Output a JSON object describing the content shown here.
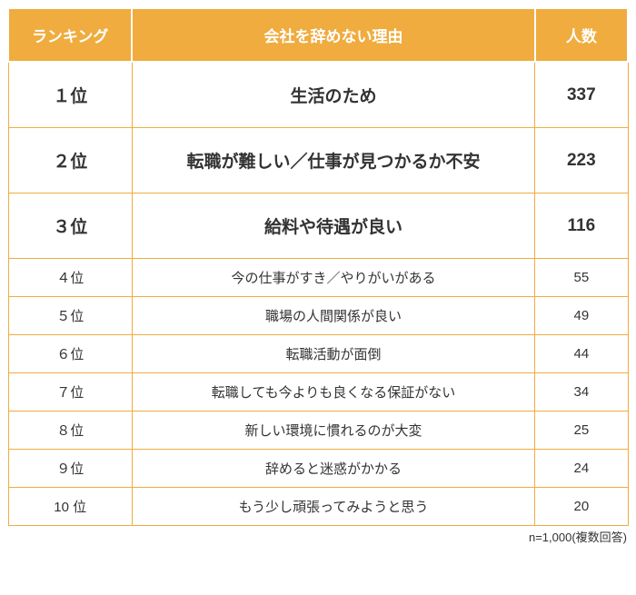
{
  "table": {
    "header_bg": "#f0ac3f",
    "header_color": "#ffffff",
    "border_color": "#f0ac3f",
    "text_color": "#333333",
    "columns": [
      "ランキング",
      "会社を辞めない理由",
      "人数"
    ],
    "rows": [
      {
        "rank": "１位",
        "reason": "生活のため",
        "count": "337",
        "top3": true
      },
      {
        "rank": "２位",
        "reason": "転職が難しい／仕事が見つかるか不安",
        "count": "223",
        "top3": true
      },
      {
        "rank": "３位",
        "reason": "給料や待遇が良い",
        "count": "116",
        "top3": true
      },
      {
        "rank": "４位",
        "reason": "今の仕事がすき／やりがいがある",
        "count": "55",
        "top3": false
      },
      {
        "rank": "５位",
        "reason": "職場の人間関係が良い",
        "count": "49",
        "top3": false
      },
      {
        "rank": "６位",
        "reason": "転職活動が面倒",
        "count": "44",
        "top3": false
      },
      {
        "rank": "７位",
        "reason": "転職しても今よりも良くなる保証がない",
        "count": "34",
        "top3": false
      },
      {
        "rank": "８位",
        "reason": "新しい環境に慣れるのが大変",
        "count": "25",
        "top3": false
      },
      {
        "rank": "９位",
        "reason": "辞めると迷惑がかかる",
        "count": "24",
        "top3": false
      },
      {
        "rank": "10 位",
        "reason": "もう少し頑張ってみようと思う",
        "count": "20",
        "top3": false
      }
    ]
  },
  "footnote": "n=1,000(複数回答)"
}
